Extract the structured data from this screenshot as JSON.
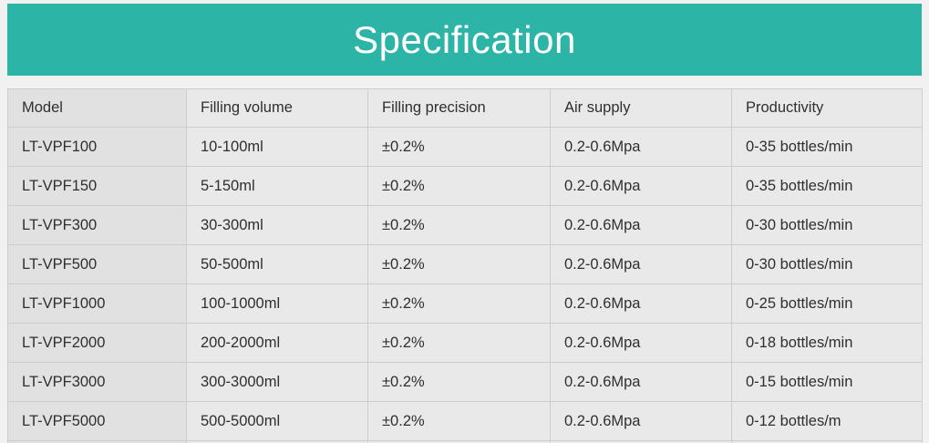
{
  "banner": {
    "title": "Specification",
    "background_color": "#2cb4a6",
    "title_color": "#ffffff"
  },
  "table": {
    "column_keys": [
      "model",
      "filling_volume",
      "filling_precision",
      "air_supply",
      "productivity"
    ],
    "columns": [
      "Model",
      "Filling volume",
      "Filling precision",
      "Air supply",
      "Productivity"
    ],
    "rows": [
      [
        "LT-VPF100",
        "10-100ml",
        "±0.2%",
        "0.2-0.6Mpa",
        "0-35 bottles/min"
      ],
      [
        "LT-VPF150",
        "5-150ml",
        "±0.2%",
        "0.2-0.6Mpa",
        "0-35 bottles/min"
      ],
      [
        "LT-VPF300",
        "30-300ml",
        "±0.2%",
        "0.2-0.6Mpa",
        "0-30 bottles/min"
      ],
      [
        "LT-VPF500",
        "50-500ml",
        "±0.2%",
        "0.2-0.6Mpa",
        "0-30 bottles/min"
      ],
      [
        "LT-VPF1000",
        "100-1000ml",
        "±0.2%",
        "0.2-0.6Mpa",
        "0-25 bottles/min"
      ],
      [
        "LT-VPF2000",
        "200-2000ml",
        "±0.2%",
        "0.2-0.6Mpa",
        "0-18 bottles/min"
      ],
      [
        "LT-VPF3000",
        "300-3000ml",
        "±0.2%",
        "0.2-0.6Mpa",
        "0-15 bottles/min"
      ],
      [
        "LT-VPF5000",
        "500-5000ml",
        "±0.2%",
        "0.2-0.6Mpa",
        "0-12 bottles/m"
      ]
    ],
    "cell_background": "#e9e9e9",
    "first_column_background": "#e1e1e1",
    "border_color": "#cdcdcd",
    "text_color": "#2f2f2f"
  }
}
